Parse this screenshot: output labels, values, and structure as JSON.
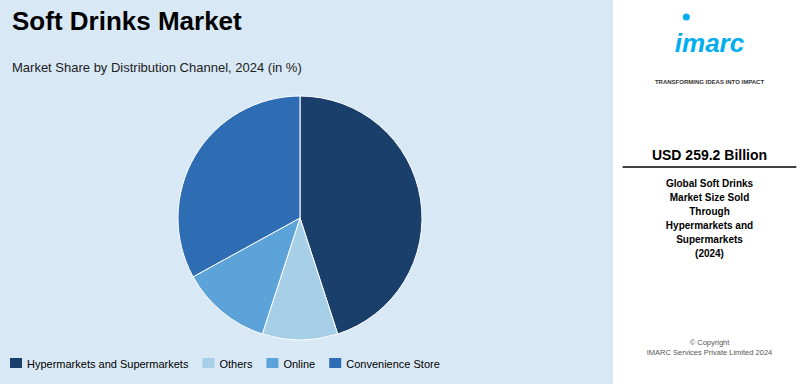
{
  "chart_data": {
    "type": "pie",
    "title": "Soft Drinks Market",
    "subtitle": "Market Share by Distribution Channel, 2024 (in %)",
    "categories": [
      "Hypermarkets and Supermarkets",
      "Others",
      "Online",
      "Convenience Store"
    ],
    "values": [
      45,
      10,
      12,
      33
    ],
    "colors": [
      "#1b3f6b",
      "#a8cfe8",
      "#5ba3d9",
      "#2e6db4"
    ],
    "legend": "lower left",
    "annotations": [
      "imarc",
      "TRANSFORMING IDEAS INTO IMPACT",
      "USD 259.2 Billion",
      "Global Soft Drinks\nMarket Size Sold\nThrough\nHypermarkets and\nSupermarkets\n(2024)",
      "© Copyright\nIMARC Services Private Limited 2024"
    ]
  }
}
